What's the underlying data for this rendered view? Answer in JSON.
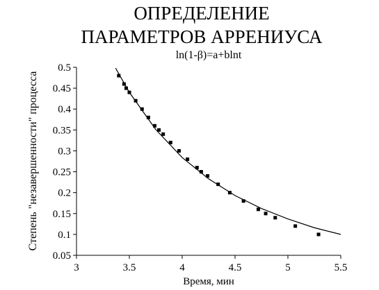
{
  "chart_data": {
    "type": "scatter",
    "title": [
      "ОПРЕДЕЛЕНИЕ",
      "ПАРАМЕТРОВ АРРЕНИУСА"
    ],
    "subtitle": "ln(1-β)=a+blnt",
    "x_label": "Время, мин",
    "y_label": "Степень \"незавершенности\" процесса",
    "xlim": [
      3,
      5.5
    ],
    "xticks": [
      3,
      3.5,
      4,
      4.5,
      5,
      5.5
    ],
    "ylim": [
      0.05,
      0.5
    ],
    "yticks": [
      0.05,
      0.1,
      0.15,
      0.2,
      0.25,
      0.3,
      0.35,
      0.4,
      0.45,
      0.5
    ],
    "series": [
      {
        "kind": "points",
        "color": "#000000",
        "x": [
          3.4,
          3.45,
          3.47,
          3.5,
          3.56,
          3.62,
          3.68,
          3.74,
          3.78,
          3.82,
          3.89,
          3.97,
          4.05,
          4.14,
          4.18,
          4.24,
          4.34,
          4.45,
          4.58,
          4.72,
          4.79,
          4.88,
          5.07,
          5.29
        ],
        "values": [
          0.48,
          0.46,
          0.45,
          0.44,
          0.42,
          0.4,
          0.38,
          0.36,
          0.35,
          0.34,
          0.32,
          0.3,
          0.28,
          0.26,
          0.25,
          0.24,
          0.22,
          0.2,
          0.18,
          0.16,
          0.15,
          0.14,
          0.12,
          0.1
        ]
      },
      {
        "kind": "line",
        "color": "#000000",
        "x": [
          3.37,
          3.5,
          3.75,
          4,
          4.25,
          4.5,
          4.75,
          5,
          5.25,
          5.5
        ],
        "values": [
          0.498,
          0.44,
          0.351,
          0.284,
          0.233,
          0.193,
          0.162,
          0.137,
          0.116,
          0.1
        ]
      }
    ]
  }
}
